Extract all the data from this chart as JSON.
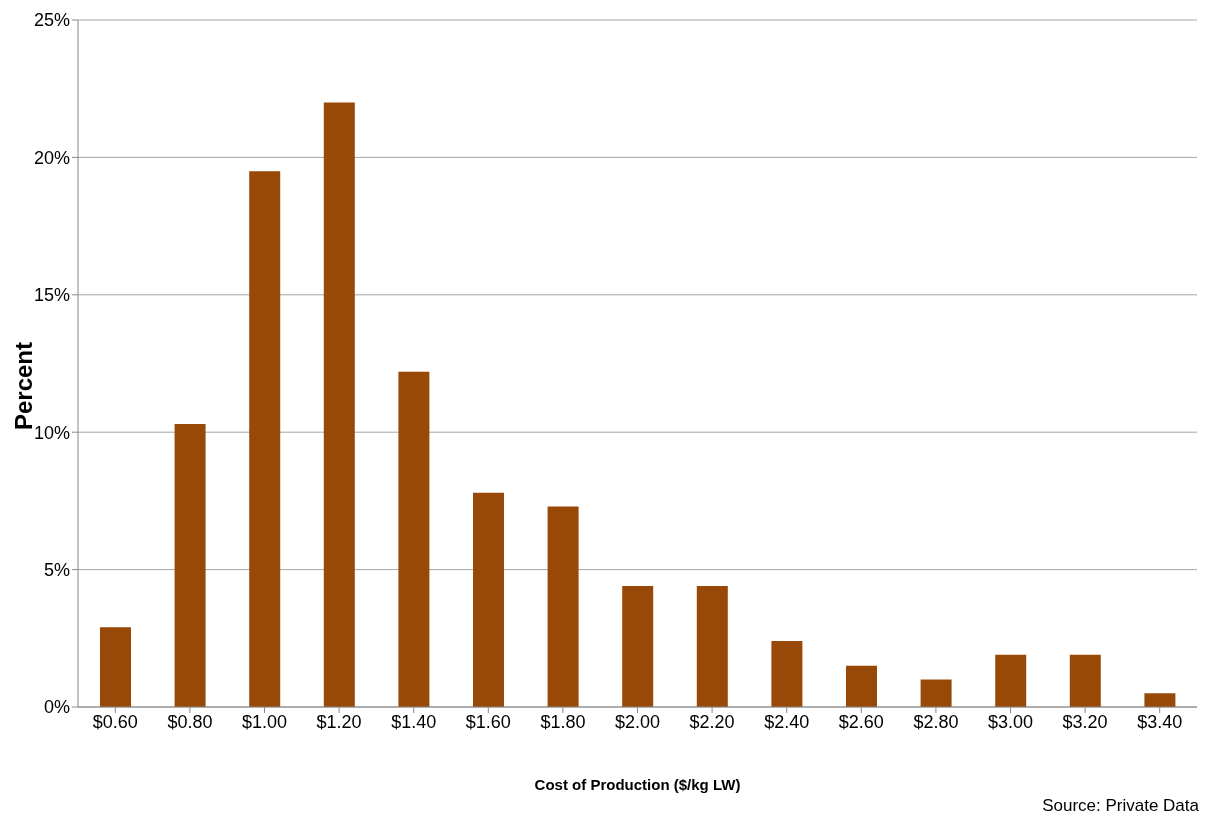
{
  "chart_data": {
    "type": "bar",
    "ylabel": "Percent",
    "xlabel": "Cost of Production ($/kg LW)",
    "categories": [
      "$0.60",
      "$0.80",
      "$1.00",
      "$1.20",
      "$1.40",
      "$1.60",
      "$1.80",
      "$2.00",
      "$2.20",
      "$2.40",
      "$2.60",
      "$2.80",
      "$3.00",
      "$3.20",
      "$3.40"
    ],
    "values": [
      2.9,
      10.3,
      19.5,
      22.0,
      12.2,
      7.8,
      7.3,
      4.4,
      4.4,
      2.4,
      1.5,
      1.0,
      1.9,
      1.9,
      0.5
    ],
    "color": "#984807",
    "ylim": [
      0,
      25
    ],
    "yticks": [
      {
        "value": 0,
        "label": "0%"
      },
      {
        "value": 5,
        "label": "5%"
      },
      {
        "value": 10,
        "label": "10%"
      },
      {
        "value": 15,
        "label": "15%"
      },
      {
        "value": 20,
        "label": "20%"
      },
      {
        "value": 25,
        "label": "25%"
      }
    ],
    "grid": "y",
    "annotations": [
      "Source: Private Data"
    ]
  }
}
